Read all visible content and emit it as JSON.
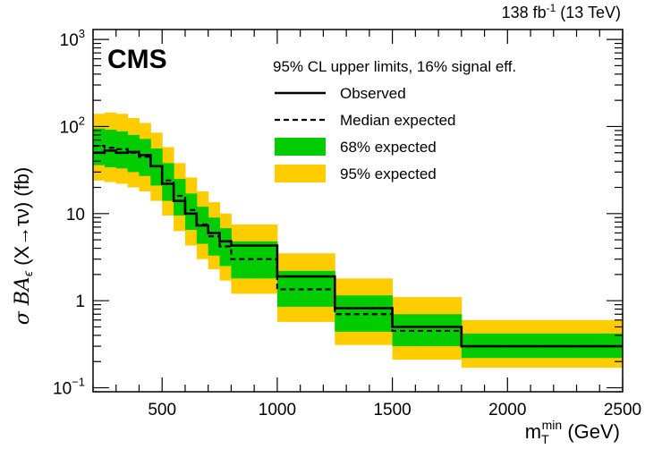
{
  "header": {
    "experiment": "CMS",
    "lumi_value": "138 fb",
    "lumi_exp": "-1",
    "lumi_energy": " (13 TeV)"
  },
  "chart_data": {
    "type": "line",
    "ylabel": "σ BA",
    "ylabel_sub": "ϵ",
    "ylabel_suffix": " (X→τν) (fb)",
    "xlabel_main": "m",
    "xlabel_sub": "T",
    "xlabel_sup": "min",
    "xlabel_unit": " (GeV)",
    "xlim": [
      200,
      2500
    ],
    "ylim": [
      0.09,
      1300
    ],
    "yscale": "log",
    "x_ticks": [
      500,
      1000,
      1500,
      2000,
      2500
    ],
    "y_ticks": [
      {
        "value": 0.1,
        "base": "10",
        "exp": "−1"
      },
      {
        "value": 1,
        "base": "1",
        "exp": ""
      },
      {
        "value": 10,
        "base": "10",
        "exp": ""
      },
      {
        "value": 100,
        "base": "10",
        "exp": "2"
      },
      {
        "value": 1000,
        "base": "10",
        "exp": "3"
      }
    ],
    "legend": {
      "header": "95% CL upper limits, 16% signal eff.",
      "entries": [
        "Observed",
        "Median expected",
        "68% expected",
        "95% expected"
      ]
    },
    "colors": {
      "band68": "#00cc00",
      "band95": "#ffcc00",
      "lines": "#000000"
    },
    "bin_edges": [
      200,
      250,
      300,
      350,
      400,
      450,
      500,
      550,
      600,
      650,
      700,
      750,
      800,
      1000,
      1250,
      1500,
      1800,
      2500
    ],
    "observed": [
      50,
      53,
      50,
      51,
      47,
      35,
      22,
      14,
      10,
      7.3,
      6,
      4.8,
      4.3,
      1.9,
      0.82,
      0.5,
      0.3
    ],
    "median_expected": [
      60,
      57,
      55,
      50,
      45,
      35,
      24,
      16,
      11,
      7.5,
      5.5,
      4.2,
      3,
      1.35,
      0.7,
      0.45,
      0.3
    ],
    "band68_low": [
      36,
      34,
      33,
      30,
      27,
      21,
      14,
      9.5,
      6.5,
      4.5,
      3.3,
      2.5,
      1.8,
      0.85,
      0.44,
      0.3,
      0.22
    ],
    "band68_high": [
      95,
      92,
      88,
      80,
      72,
      56,
      38,
      25,
      17,
      12,
      9,
      6.8,
      4.8,
      2.2,
      1.15,
      0.7,
      0.42
    ],
    "band95_low": [
      24,
      23,
      22,
      20,
      18,
      14,
      9.5,
      6.3,
      4.3,
      3,
      2.3,
      1.7,
      1.2,
      0.57,
      0.31,
      0.21,
      0.17
    ],
    "band95_high": [
      140,
      145,
      140,
      125,
      110,
      85,
      58,
      38,
      26,
      18,
      13.5,
      10,
      7.5,
      3.5,
      1.8,
      1.1,
      0.6
    ]
  }
}
